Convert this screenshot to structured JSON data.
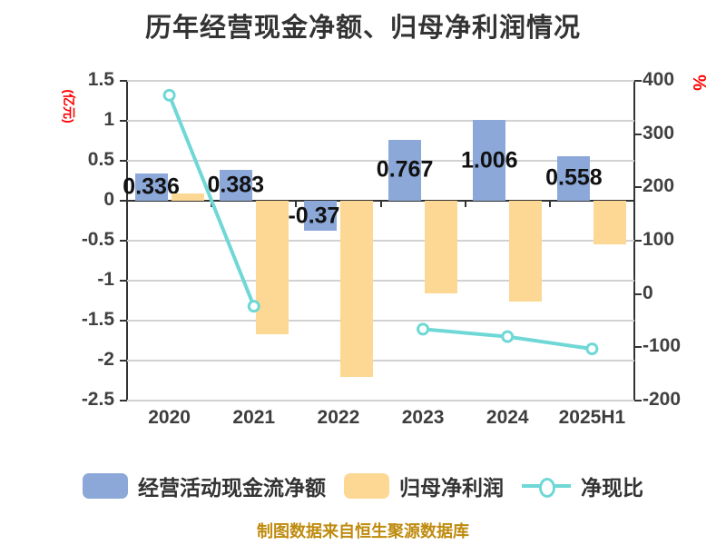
{
  "chart_data": {
    "type": "bar+line",
    "title": "历年经营现金净额、归母净利润情况",
    "categories": [
      "2020",
      "2021",
      "2022",
      "2023",
      "2024",
      "2025H1"
    ],
    "series": [
      {
        "name": "经营活动现金流净额",
        "type": "bar",
        "axis": "left",
        "color": "#8ca8d8",
        "values": [
          0.336,
          0.383,
          -0.378,
          0.767,
          1.006,
          0.558
        ],
        "labels": [
          "0.336",
          "0.383",
          "-0.378",
          "0.767",
          "1.006",
          "0.558"
        ]
      },
      {
        "name": "归母净利润",
        "type": "bar",
        "axis": "left",
        "color": "#fdd894",
        "values": [
          0.09,
          -1.67,
          -2.21,
          -1.16,
          -1.26,
          -0.54
        ]
      },
      {
        "name": "净现比",
        "type": "line",
        "axis": "right",
        "color": "#6fd8d6",
        "marker": "circle",
        "values": [
          373,
          -23,
          null,
          -66,
          -80,
          -103
        ]
      }
    ],
    "left_axis": {
      "name": "(亿元)",
      "max": 1.5,
      "min": -2.5,
      "step": 0.5,
      "tick_labels": [
        "1.5",
        "1",
        "0.5",
        "0",
        "-0.5",
        "-1",
        "-1.5",
        "-2",
        "-2.5"
      ]
    },
    "right_axis": {
      "name": "%",
      "max": 400,
      "min": -200,
      "step": 100,
      "tick_labels": [
        "400",
        "300",
        "200",
        "100",
        "0",
        "-100",
        "-200"
      ]
    },
    "grid": true,
    "legend_position": "bottom",
    "footer": "制图数据来自恒生聚源数据库"
  }
}
